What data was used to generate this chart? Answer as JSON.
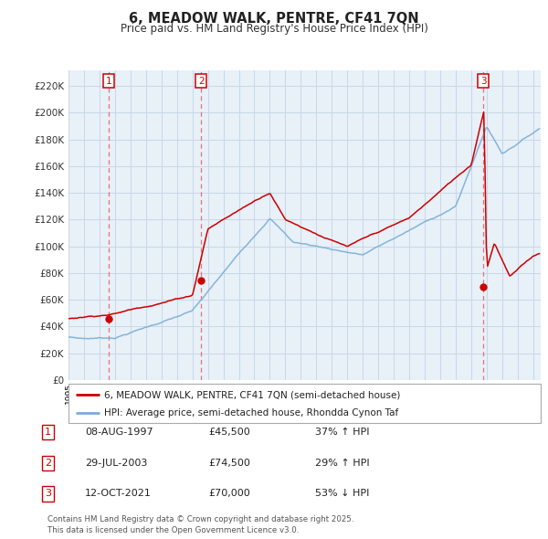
{
  "title": "6, MEADOW WALK, PENTRE, CF41 7QN",
  "subtitle": "Price paid vs. HM Land Registry's House Price Index (HPI)",
  "ytick_values": [
    0,
    20000,
    40000,
    60000,
    80000,
    100000,
    120000,
    140000,
    160000,
    180000,
    200000,
    220000
  ],
  "ylim": [
    0,
    232000
  ],
  "xlim_start": 1995.0,
  "xlim_end": 2025.5,
  "sale_dates": [
    1997.6,
    2003.57,
    2021.79
  ],
  "sale_prices": [
    45500,
    74500,
    70000
  ],
  "sale_labels": [
    "1",
    "2",
    "3"
  ],
  "legend_line1": "6, MEADOW WALK, PENTRE, CF41 7QN (semi-detached house)",
  "legend_line2": "HPI: Average price, semi-detached house, Rhondda Cynon Taf",
  "table_rows": [
    {
      "num": "1",
      "date": "08-AUG-1997",
      "price": "£45,500",
      "hpi": "37% ↑ HPI"
    },
    {
      "num": "2",
      "date": "29-JUL-2003",
      "price": "£74,500",
      "hpi": "29% ↑ HPI"
    },
    {
      "num": "3",
      "date": "12-OCT-2021",
      "price": "£70,000",
      "hpi": "53% ↓ HPI"
    }
  ],
  "footnote": "Contains HM Land Registry data © Crown copyright and database right 2025.\nThis data is licensed under the Open Government Licence v3.0.",
  "property_color": "#cc0000",
  "hpi_color": "#7aaed6",
  "chart_bg": "#e8f0f8",
  "background_color": "#ffffff",
  "grid_color": "#c8d8e8"
}
